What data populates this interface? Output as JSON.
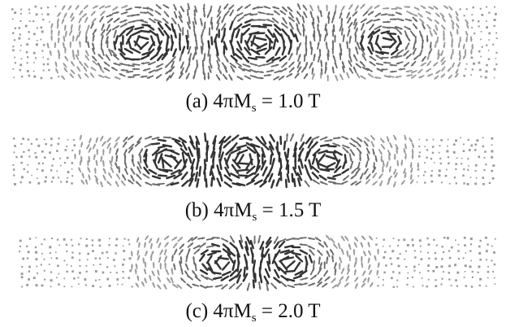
{
  "panels": [
    {
      "prefix": "(a) 4πM",
      "subscript": "s",
      "suffix": " = 1.0 T",
      "vortices": [
        {
          "center": 0.27,
          "strength": 1.0
        },
        {
          "center": 0.51,
          "strength": 1.0
        },
        {
          "center": 0.77,
          "strength": 0.8
        }
      ]
    },
    {
      "prefix": "(b) 4πM",
      "subscript": "s",
      "suffix": " = 1.5 T",
      "vortices": [
        {
          "center": 0.33,
          "strength": 0.9
        },
        {
          "center": 0.48,
          "strength": 0.9
        },
        {
          "center": 0.65,
          "strength": 0.8
        }
      ]
    },
    {
      "prefix": "(c) 4πM",
      "subscript": "s",
      "suffix": " = 2.0 T",
      "vortices": [
        {
          "center": 0.43,
          "strength": 0.8
        },
        {
          "center": 0.56,
          "strength": 0.8
        }
      ]
    }
  ],
  "colors": {
    "arrow_dark": "#333333",
    "arrow_mid": "#6a6a6a",
    "arrow_light": "#9a9a9a",
    "background": "#ffffff",
    "caption": "#111111"
  }
}
